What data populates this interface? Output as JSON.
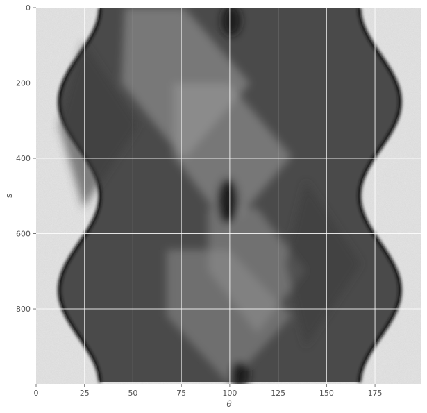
{
  "chart_data": {
    "type": "heatmap",
    "title": "",
    "xlabel": "θ",
    "ylabel": "s",
    "xlim": [
      0,
      199
    ],
    "ylim": [
      999,
      0
    ],
    "x_ticks": [
      0,
      25,
      50,
      75,
      100,
      125,
      150,
      175
    ],
    "x_tick_labels": [
      "0",
      "25",
      "50",
      "75",
      "100",
      "125",
      "150",
      "175"
    ],
    "y_ticks": [
      200,
      400,
      600,
      800
    ],
    "y_tick_labels": [
      "200",
      "400",
      "600",
      "800"
    ],
    "grid": true,
    "colormap": "gray",
    "description_values": {
      "background_level": "light gray noise outside object",
      "object_envelope_left": [
        {
          "s": 0,
          "theta": 33
        },
        {
          "s": 250,
          "theta": 12
        },
        {
          "s": 500,
          "theta": 33
        },
        {
          "s": 750,
          "theta": 12
        },
        {
          "s": 999,
          "theta": 33
        }
      ],
      "object_envelope_right": [
        {
          "s": 0,
          "theta": 167
        },
        {
          "s": 250,
          "theta": 188
        },
        {
          "s": 500,
          "theta": 167
        },
        {
          "s": 750,
          "theta": 188
        },
        {
          "s": 999,
          "theta": 167
        }
      ]
    }
  },
  "colors": {
    "background": "#e6e6e6",
    "object_dark": "#1a1a1a",
    "object_mid": "#6f6f6f",
    "grid": "#ffffff",
    "text": "#555555"
  }
}
